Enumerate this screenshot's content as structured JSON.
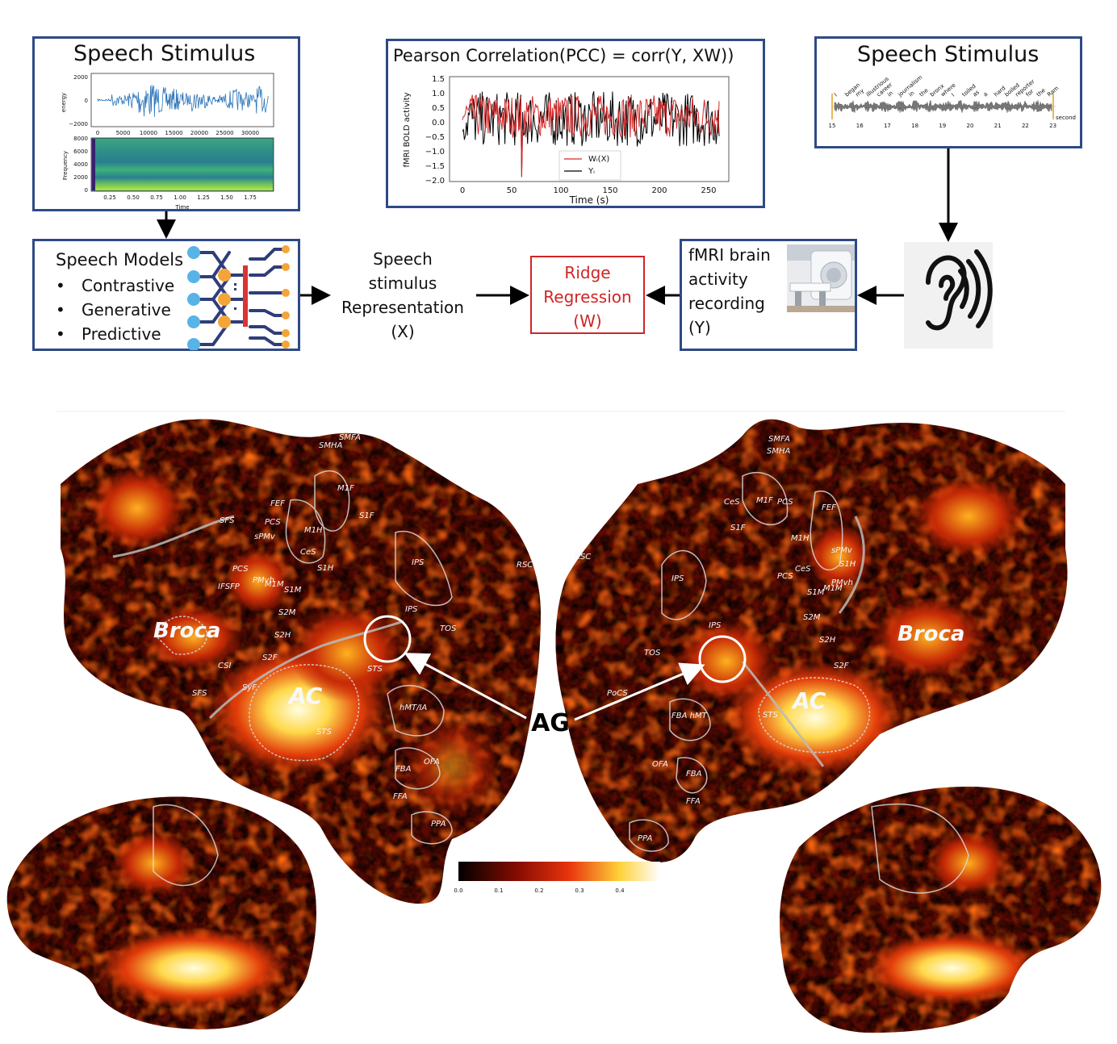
{
  "top_left": {
    "title": "Speech Stimulus",
    "waveform": {
      "ylabel": "energy",
      "yticks": [
        "2000",
        "0",
        "−2000"
      ],
      "xticks": [
        "0",
        "5000",
        "10000",
        "15000",
        "20000",
        "25000",
        "30000"
      ]
    },
    "spectrogram": {
      "ylabel": "Frequency",
      "yticks": [
        "8000",
        "6000",
        "4000",
        "2000",
        "0"
      ],
      "xticks": [
        "0.25",
        "0.50",
        "0.75",
        "1.00",
        "1.25",
        "1.50",
        "1.75"
      ],
      "xlabel": "Time"
    }
  },
  "pcc": {
    "title": "Pearson Correlation(PCC) = corr(Y, XW))",
    "ylabel": "fMRI BOLD activity",
    "xlabel": "Time (s)",
    "yticks": [
      "1.5",
      "1.0",
      "0.5",
      "0.0",
      "−0.5",
      "−1.0",
      "−1.5",
      "−2.0"
    ],
    "xticks": [
      "0",
      "50",
      "100",
      "150",
      "200",
      "250"
    ],
    "legend": [
      "Wᵢ(X)",
      "Yᵢ"
    ],
    "colors": {
      "pred": "#d62728",
      "actual": "#000000"
    }
  },
  "top_right": {
    "title": "Speech Stimulus",
    "words": [
      "I",
      "began",
      "my",
      "illustrious",
      "career",
      "in",
      "journalism",
      "in",
      "the",
      "bronx",
      "where",
      "I",
      "toiled",
      "as",
      "a",
      "hard",
      "boiled",
      "reporter",
      "for",
      "the",
      "Ram"
    ],
    "xticks": [
      "15",
      "16",
      "17",
      "18",
      "19",
      "20",
      "21",
      "22",
      "23"
    ],
    "xlabel": "second"
  },
  "models": {
    "title": "Speech Models",
    "items": [
      "Contrastive",
      "Generative",
      "Predictive"
    ]
  },
  "representation": {
    "line1": "Speech",
    "line2": "stimulus",
    "line3": "Representation",
    "line4": "(X)"
  },
  "ridge": {
    "line1": "Ridge",
    "line2": "Regression",
    "line3": "(W)"
  },
  "fmri": {
    "line1": "fMRI brain",
    "line2": "activity",
    "line3": "recording",
    "line4": "(Y)"
  },
  "brain_labels": {
    "broca": "Broca",
    "ac": "AC",
    "ag": "AG",
    "left_rois": [
      "SMFA",
      "SMHA",
      "M1F",
      "FEF",
      "PCS",
      "S1F",
      "M1H",
      "SFS",
      "sPMv",
      "CeS",
      "S1H",
      "IPS",
      "RSC",
      "PCS",
      "IFSFP",
      "PMvh",
      "M1M",
      "S1M",
      "IPS",
      "TOS",
      "S2M",
      "S2H",
      "CSI",
      "S2F",
      "SyF",
      "SFS",
      "STS",
      "hMT/IA",
      "FBA",
      "OFA",
      "FFA",
      "PPA",
      "STS"
    ],
    "right_rois": [
      "SMFA",
      "SMHA",
      "CeS",
      "M1F",
      "PCS",
      "FEF",
      "S1F",
      "M1H",
      "sPMv",
      "RSC",
      "IPS",
      "CeS",
      "S1H",
      "PCS",
      "S1M",
      "M1M",
      "PMvh",
      "IPS",
      "TOS",
      "S2M",
      "S2H",
      "S2F",
      "PoCS",
      "FBA hMT",
      "STS",
      "OFA",
      "FBA",
      "FFA",
      "PPA"
    ]
  },
  "colorbar": {
    "ticks": [
      "0.0",
      "0.1",
      "0.2",
      "0.3",
      "0.4"
    ]
  }
}
